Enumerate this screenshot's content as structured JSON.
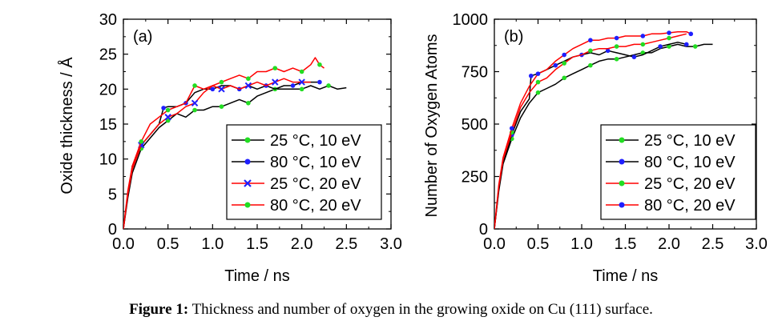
{
  "caption": {
    "label": "Figure 1:",
    "text": "Thickness and number of oxygen in the growing oxide on Cu (111) surface."
  },
  "chart_data": [
    {
      "type": "line",
      "panel_label": "(a)",
      "xlabel": "Time / ns",
      "ylabel": "Oxide thickness / Å",
      "xlim": [
        0,
        3
      ],
      "ylim": [
        0,
        30
      ],
      "xticks": [
        "0.0",
        "0.5",
        "1.0",
        "1.5",
        "2.0",
        "2.5",
        "3.0"
      ],
      "yticks": [
        "0",
        "5",
        "10",
        "15",
        "20",
        "25",
        "30"
      ],
      "legend_position": "bottom-right",
      "series": [
        {
          "name": "25 °C, 10 eV",
          "color": "#000000",
          "marker": "circle",
          "marker_color": "#22dd22",
          "x": [
            0,
            0.05,
            0.1,
            0.2,
            0.3,
            0.4,
            0.5,
            0.6,
            0.7,
            0.8,
            0.9,
            1.0,
            1.1,
            1.2,
            1.3,
            1.4,
            1.5,
            1.6,
            1.7,
            1.8,
            1.9,
            2.0,
            2.1,
            2.2,
            2.3,
            2.4,
            2.5
          ],
          "y": [
            0,
            4.5,
            8,
            11.5,
            13,
            14.5,
            15.5,
            16.5,
            16,
            17,
            17,
            17.5,
            17.5,
            18,
            18.5,
            18,
            19,
            19.5,
            20,
            20,
            20,
            20,
            20.5,
            20,
            20.5,
            20,
            20.2
          ]
        },
        {
          "name": "80 °C, 10 eV",
          "color": "#000000",
          "marker": "circle",
          "marker_color": "#1f1fff",
          "x": [
            0,
            0.05,
            0.1,
            0.2,
            0.3,
            0.4,
            0.45,
            0.5,
            0.6,
            0.7,
            0.8,
            0.9,
            1.0,
            1.1,
            1.2,
            1.3,
            1.4,
            1.5,
            1.6,
            1.7,
            1.8,
            1.9,
            2.0,
            2.1,
            2.2
          ],
          "y": [
            0,
            5,
            9,
            12,
            13.5,
            15,
            17.3,
            17.5,
            17.5,
            18,
            19.5,
            20,
            20,
            20.5,
            20.5,
            20,
            20.5,
            20,
            20.5,
            20,
            20.5,
            20.5,
            21,
            21,
            21
          ]
        },
        {
          "name": "25 °C, 20 eV",
          "color": "#ff0000",
          "marker": "cross",
          "marker_color": "#1f1fff",
          "x": [
            0,
            0.05,
            0.1,
            0.2,
            0.3,
            0.4,
            0.5,
            0.6,
            0.7,
            0.8,
            0.9,
            1.0,
            1.1,
            1.2,
            1.3,
            1.4,
            1.5,
            1.6,
            1.7,
            1.8,
            1.9,
            2.0,
            2.1
          ],
          "y": [
            0,
            5,
            8.5,
            12,
            13.5,
            15,
            16,
            16.5,
            17.5,
            18,
            19.5,
            20.5,
            20,
            20.5,
            20,
            20.5,
            21,
            20.5,
            21,
            21.5,
            21,
            21,
            21
          ]
        },
        {
          "name": "80 °C, 20 eV",
          "color": "#ff0000",
          "marker": "circle",
          "marker_color": "#22dd22",
          "x": [
            0,
            0.05,
            0.1,
            0.2,
            0.3,
            0.4,
            0.5,
            0.6,
            0.7,
            0.8,
            0.9,
            1.0,
            1.1,
            1.2,
            1.3,
            1.4,
            1.5,
            1.6,
            1.7,
            1.8,
            1.9,
            2.0,
            2.1,
            2.15,
            2.2,
            2.25
          ],
          "y": [
            0,
            5.5,
            9,
            12.5,
            15,
            16,
            17,
            17.5,
            18,
            20.5,
            20,
            20.5,
            21,
            21.5,
            22,
            21.5,
            22.5,
            22.5,
            23,
            22.5,
            23,
            22.5,
            23.5,
            24.5,
            23.5,
            23
          ]
        }
      ]
    },
    {
      "type": "line",
      "panel_label": "(b)",
      "xlabel": "Time / ns",
      "ylabel": "Number of Oxygen Atoms",
      "xlim": [
        0,
        3
      ],
      "ylim": [
        0,
        1000
      ],
      "xticks": [
        "0.0",
        "0.5",
        "1.0",
        "1.5",
        "2.0",
        "2.5",
        "3.0"
      ],
      "yticks": [
        "0",
        "250",
        "500",
        "750",
        "1000"
      ],
      "legend_position": "bottom-right",
      "series": [
        {
          "name": "25 °C, 10 eV",
          "color": "#000000",
          "marker": "circle",
          "marker_color": "#22dd22",
          "x": [
            0,
            0.05,
            0.1,
            0.2,
            0.3,
            0.4,
            0.5,
            0.6,
            0.7,
            0.8,
            0.9,
            1.0,
            1.1,
            1.2,
            1.3,
            1.4,
            1.5,
            1.6,
            1.7,
            1.8,
            1.9,
            2.0,
            2.1,
            2.2,
            2.3,
            2.4,
            2.5
          ],
          "y": [
            0,
            180,
            310,
            430,
            530,
            600,
            650,
            670,
            690,
            720,
            740,
            760,
            780,
            800,
            810,
            810,
            820,
            830,
            840,
            840,
            860,
            870,
            880,
            870,
            870,
            880,
            880
          ]
        },
        {
          "name": "80 °C, 10 eV",
          "color": "#000000",
          "marker": "circle",
          "marker_color": "#1f1fff",
          "x": [
            0,
            0.05,
            0.1,
            0.2,
            0.3,
            0.4,
            0.42,
            0.5,
            0.6,
            0.7,
            0.8,
            0.9,
            1.0,
            1.1,
            1.2,
            1.3,
            1.4,
            1.5,
            1.6,
            1.7,
            1.8,
            1.9,
            2.0,
            2.1,
            2.2
          ],
          "y": [
            0,
            190,
            320,
            450,
            560,
            620,
            730,
            740,
            760,
            780,
            800,
            820,
            830,
            840,
            830,
            850,
            840,
            830,
            820,
            830,
            850,
            870,
            880,
            890,
            880
          ]
        },
        {
          "name": "25 °C, 20 eV",
          "color": "#ff0000",
          "marker": "circle",
          "marker_color": "#22dd22",
          "x": [
            0,
            0.05,
            0.1,
            0.2,
            0.3,
            0.4,
            0.5,
            0.6,
            0.7,
            0.8,
            0.9,
            1.0,
            1.1,
            1.2,
            1.3,
            1.4,
            1.5,
            1.6,
            1.7,
            1.8,
            1.9,
            2.0,
            2.1,
            2.2
          ],
          "y": [
            0,
            200,
            330,
            460,
            580,
            650,
            700,
            720,
            760,
            790,
            820,
            830,
            850,
            860,
            860,
            870,
            870,
            880,
            880,
            890,
            900,
            910,
            920,
            930
          ]
        },
        {
          "name": "80 °C, 20 eV",
          "color": "#ff0000",
          "marker": "circle",
          "marker_color": "#1f1fff",
          "x": [
            0,
            0.05,
            0.1,
            0.2,
            0.3,
            0.4,
            0.5,
            0.6,
            0.7,
            0.8,
            0.9,
            1.0,
            1.1,
            1.2,
            1.3,
            1.4,
            1.5,
            1.6,
            1.7,
            1.8,
            1.9,
            2.0,
            2.1,
            2.2,
            2.25
          ],
          "y": [
            0,
            210,
            340,
            480,
            600,
            680,
            740,
            760,
            800,
            830,
            860,
            880,
            900,
            900,
            910,
            910,
            920,
            920,
            920,
            930,
            930,
            935,
            940,
            940,
            930
          ]
        }
      ]
    }
  ]
}
